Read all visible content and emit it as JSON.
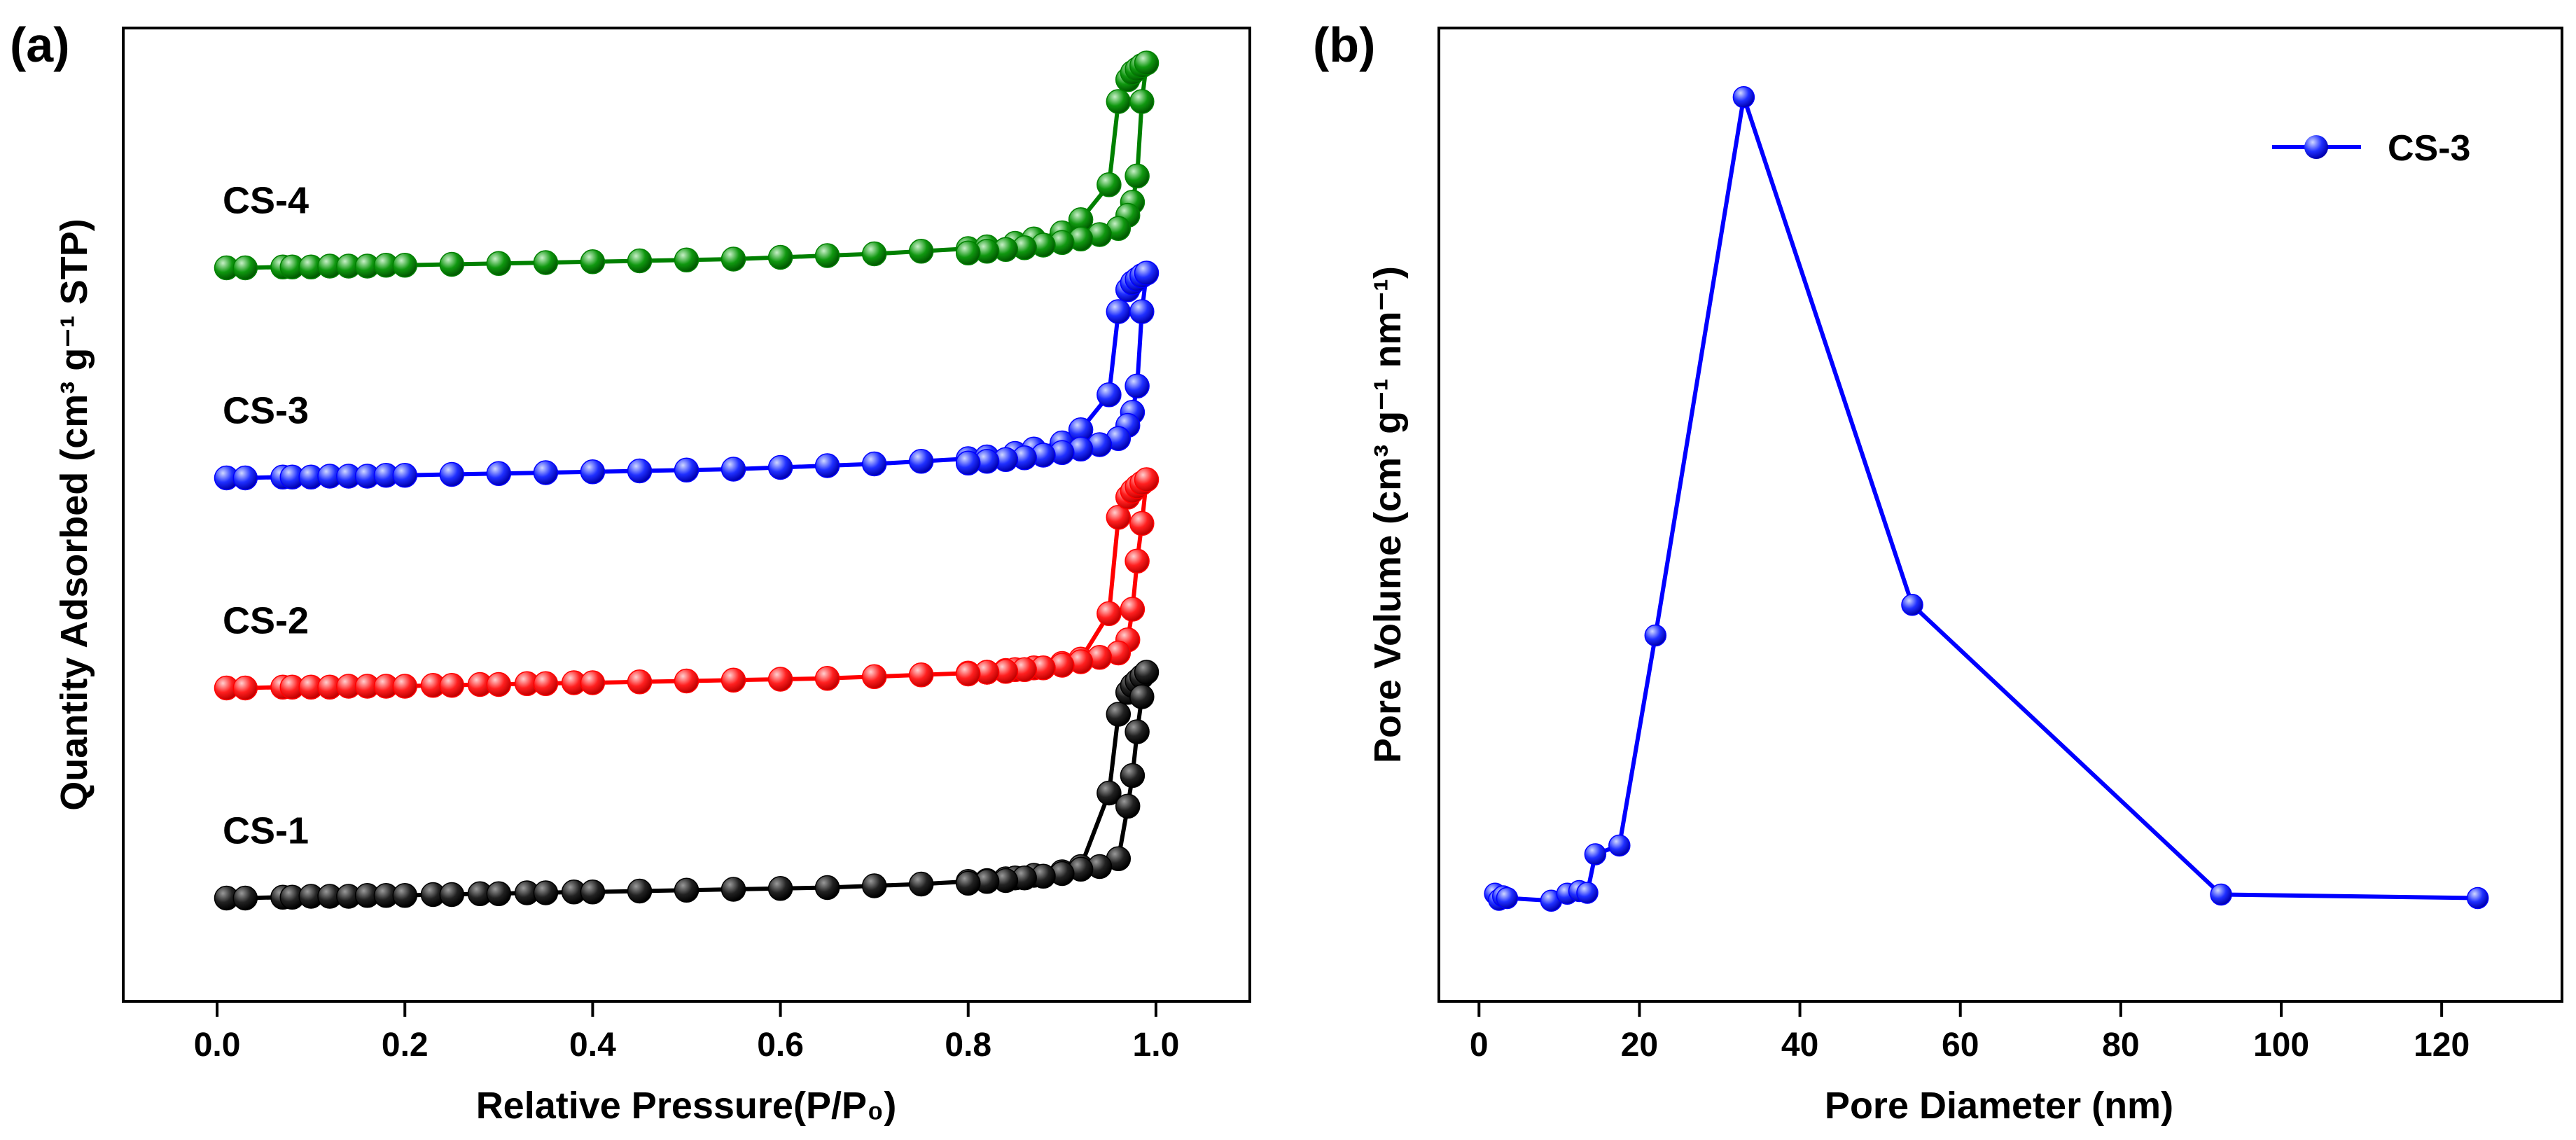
{
  "chart_data": [
    {
      "panel": "(a)",
      "type": "line",
      "title": "",
      "xlabel": "Relative Pressure(P/P₀)",
      "ylabel": "Quantity Adsorbed (cm³ g⁻¹ STP)",
      "xlim": [
        -0.1,
        1.1
      ],
      "ylim": [
        0,
        100
      ],
      "x_ticks": [
        "0.0",
        "0.2",
        "0.4",
        "0.6",
        "0.8",
        "1.0"
      ],
      "x_tick_values": [
        0.0,
        0.2,
        0.4,
        0.6,
        0.8,
        1.0
      ],
      "yticks_shown": false,
      "series": [
        {
          "name": "CS-1",
          "color": "#000000",
          "x": [
            0.01,
            0.03,
            0.07,
            0.08,
            0.1,
            0.12,
            0.14,
            0.16,
            0.18,
            0.2,
            0.23,
            0.25,
            0.28,
            0.3,
            0.33,
            0.35,
            0.38,
            0.4,
            0.45,
            0.5,
            0.55,
            0.6,
            0.65,
            0.7,
            0.75,
            0.8,
            0.82,
            0.84,
            0.85,
            0.87,
            0.9,
            0.92,
            0.95,
            0.96,
            0.97,
            0.975,
            0.98,
            0.985,
            0.99,
            0.985,
            0.98,
            0.975,
            0.97,
            0.96,
            0.94,
            0.92,
            0.9,
            0.88,
            0.86,
            0.84,
            0.82,
            0.8
          ],
          "y": [
            5.0,
            5.0,
            5.1,
            5.1,
            5.2,
            5.2,
            5.2,
            5.3,
            5.3,
            5.3,
            5.4,
            5.4,
            5.5,
            5.5,
            5.6,
            5.6,
            5.7,
            5.7,
            5.8,
            5.9,
            6.0,
            6.1,
            6.2,
            6.4,
            6.6,
            6.9,
            7.0,
            7.2,
            7.3,
            7.6,
            8.0,
            8.6,
            17.0,
            26.0,
            28.5,
            29.3,
            29.8,
            30.3,
            30.8,
            28.0,
            24.0,
            19.0,
            15.5,
            9.5,
            8.6,
            8.3,
            7.8,
            7.5,
            7.3,
            7.0,
            6.9,
            6.7
          ]
        },
        {
          "name": "CS-2",
          "color": "#ff0000",
          "x": [
            0.01,
            0.03,
            0.07,
            0.08,
            0.1,
            0.12,
            0.14,
            0.16,
            0.18,
            0.2,
            0.23,
            0.25,
            0.28,
            0.3,
            0.33,
            0.35,
            0.38,
            0.4,
            0.45,
            0.5,
            0.55,
            0.6,
            0.65,
            0.7,
            0.75,
            0.8,
            0.82,
            0.84,
            0.85,
            0.87,
            0.9,
            0.92,
            0.95,
            0.96,
            0.97,
            0.975,
            0.98,
            0.985,
            0.99,
            0.985,
            0.98,
            0.975,
            0.97,
            0.96,
            0.94,
            0.92,
            0.9,
            0.88,
            0.86,
            0.84,
            0.82,
            0.8
          ],
          "y": [
            29.0,
            29.0,
            29.1,
            29.1,
            29.1,
            29.1,
            29.2,
            29.2,
            29.2,
            29.2,
            29.3,
            29.3,
            29.4,
            29.4,
            29.5,
            29.5,
            29.6,
            29.6,
            29.7,
            29.8,
            29.9,
            30.0,
            30.1,
            30.3,
            30.5,
            30.7,
            30.8,
            31.0,
            31.1,
            31.3,
            31.8,
            32.3,
            37.5,
            48.5,
            50.8,
            51.5,
            52.0,
            52.4,
            52.8,
            47.8,
            43.5,
            38.0,
            34.5,
            33.0,
            32.5,
            32.0,
            31.6,
            31.3,
            31.1,
            30.9,
            30.8,
            30.6
          ]
        },
        {
          "name": "CS-3",
          "color": "#0000ff",
          "x": [
            0.01,
            0.03,
            0.07,
            0.08,
            0.1,
            0.12,
            0.14,
            0.16,
            0.18,
            0.2,
            0.25,
            0.3,
            0.35,
            0.4,
            0.45,
            0.5,
            0.55,
            0.6,
            0.65,
            0.7,
            0.75,
            0.8,
            0.82,
            0.85,
            0.87,
            0.9,
            0.92,
            0.95,
            0.96,
            0.97,
            0.975,
            0.98,
            0.985,
            0.99,
            0.985,
            0.98,
            0.975,
            0.97,
            0.96,
            0.94,
            0.92,
            0.9,
            0.88,
            0.86,
            0.84,
            0.82,
            0.8
          ],
          "y": [
            53.0,
            53.0,
            53.1,
            53.1,
            53.1,
            53.2,
            53.2,
            53.2,
            53.3,
            53.3,
            53.4,
            53.5,
            53.6,
            53.7,
            53.8,
            53.9,
            54.0,
            54.2,
            54.4,
            54.6,
            54.9,
            55.2,
            55.4,
            55.8,
            56.3,
            57.0,
            58.5,
            62.5,
            72.0,
            74.5,
            75.3,
            75.7,
            76.1,
            76.4,
            72.0,
            63.5,
            60.5,
            59.0,
            57.5,
            56.8,
            56.3,
            55.9,
            55.6,
            55.3,
            55.1,
            54.9,
            54.7
          ]
        },
        {
          "name": "CS-4",
          "color": "#008000",
          "x": [
            0.01,
            0.03,
            0.07,
            0.08,
            0.1,
            0.12,
            0.14,
            0.16,
            0.18,
            0.2,
            0.25,
            0.3,
            0.35,
            0.4,
            0.45,
            0.5,
            0.55,
            0.6,
            0.65,
            0.7,
            0.75,
            0.8,
            0.82,
            0.85,
            0.87,
            0.9,
            0.92,
            0.95,
            0.96,
            0.97,
            0.975,
            0.98,
            0.985,
            0.99,
            0.985,
            0.98,
            0.975,
            0.97,
            0.96,
            0.94,
            0.92,
            0.9,
            0.88,
            0.86,
            0.84,
            0.82,
            0.8
          ],
          "y": [
            77.0,
            77.0,
            77.1,
            77.1,
            77.1,
            77.2,
            77.2,
            77.2,
            77.3,
            77.3,
            77.4,
            77.5,
            77.6,
            77.7,
            77.8,
            77.9,
            78.0,
            78.2,
            78.4,
            78.6,
            78.9,
            79.2,
            79.4,
            79.8,
            80.3,
            81.0,
            82.5,
            86.5,
            96.0,
            98.5,
            99.3,
            99.7,
            100.1,
            100.4,
            96.0,
            87.5,
            84.5,
            83.0,
            81.5,
            80.8,
            80.3,
            79.9,
            79.6,
            79.3,
            79.1,
            78.9,
            78.7
          ]
        }
      ],
      "annotations": [
        "CS-4",
        "CS-3",
        "CS-2",
        "CS-1"
      ]
    },
    {
      "panel": "(b)",
      "type": "line",
      "title": "",
      "xlabel": "Pore Diameter (nm)",
      "ylabel": "Pore Volume  (cm³ g⁻¹ nm⁻¹)",
      "xlim": [
        -5,
        135
      ],
      "ylim": [
        0,
        100
      ],
      "x_ticks": [
        "0",
        "20",
        "40",
        "60",
        "80",
        "100",
        "120"
      ],
      "x_tick_values": [
        0,
        20,
        40,
        60,
        80,
        100,
        120
      ],
      "yticks_shown": false,
      "legend": "top-right",
      "series": [
        {
          "name": "CS-3",
          "color": "#0000ff",
          "x": [
            2.0,
            2.5,
            3.0,
            3.5,
            9.0,
            11.0,
            12.5,
            13.5,
            14.5,
            17.5,
            22.0,
            33.0,
            54.0,
            92.5,
            124.5
          ],
          "y": [
            5.5,
            4.8,
            5.2,
            5.0,
            4.7,
            5.5,
            5.8,
            5.6,
            10.0,
            11.0,
            35.0,
            96.5,
            38.5,
            5.4,
            5.0
          ]
        }
      ]
    }
  ],
  "colors": {
    "black_series": "#000000",
    "red_series": "#ff0000",
    "blue_series": "#0000ff",
    "green_series": "#008000"
  }
}
